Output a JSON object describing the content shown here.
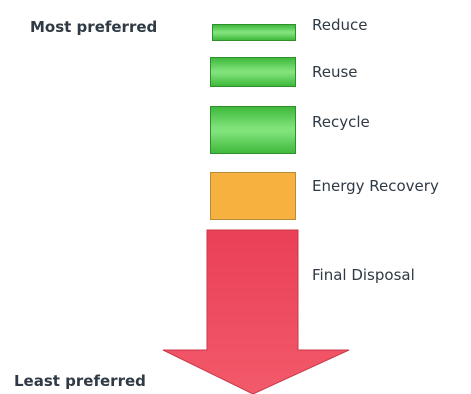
{
  "labels": {
    "most_preferred": "Most preferred",
    "least_preferred": "Least preferred"
  },
  "tiers": [
    {
      "label": "Reduce",
      "color": "#4fcf4a"
    },
    {
      "label": "Reuse",
      "color": "#4fcf4a"
    },
    {
      "label": "Recycle",
      "color": "#4fcf4a"
    },
    {
      "label": "Energy Recovery",
      "color": "#f7b13e"
    },
    {
      "label": "Final Disposal",
      "color": "#ee4b5e"
    }
  ]
}
